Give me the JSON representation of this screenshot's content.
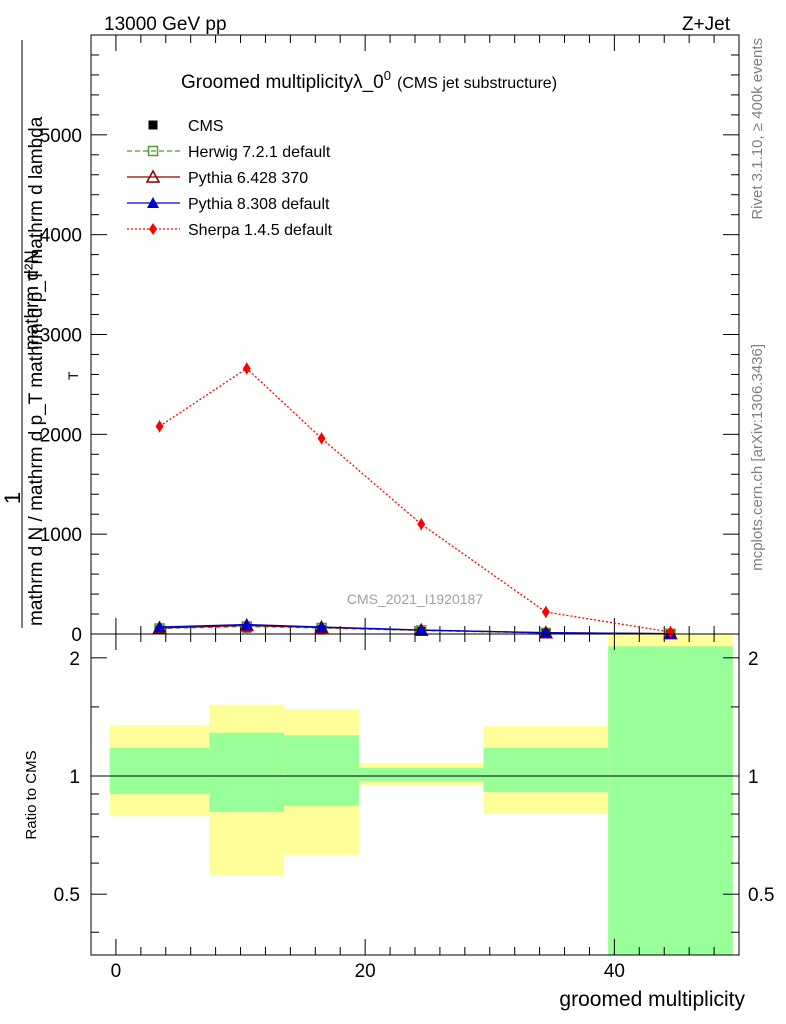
{
  "header": {
    "left": "13000 GeV pp",
    "right": "Z+Jet"
  },
  "side_texts": {
    "rivet": "Rivet 3.1.10, ≥ 400k events",
    "mcplots": "mcplots.cern.ch [arXiv:1306.3436]"
  },
  "chart_data": {
    "type": "line",
    "title": "Groomed multiplicityλ_0",
    "title_sup": "0",
    "title_suffix": "(CMS jet substructure)",
    "analysis_label": "CMS_2021_I1920187",
    "ylabel_top": "1",
    "ylabel_bottom": "mathrm d N / mathrm d p_T mathrm d p_T mathrm d lambda",
    "ylabel_numerator": "mathrm d²N",
    "ylabel_sub": "T",
    "xlabel": "groomed multiplicity",
    "xlim": [
      -2,
      50
    ],
    "ylim": [
      0,
      6000
    ],
    "x_ticks": [
      "0",
      "20",
      "40"
    ],
    "y_ticks": [
      "0",
      "1000",
      "2000",
      "3000",
      "4000",
      "5000"
    ],
    "x": [
      3.5,
      10.5,
      16.5,
      24.5,
      34.5,
      44.5
    ],
    "series": [
      {
        "name": "CMS",
        "values": [
          40,
          60,
          45,
          25,
          8,
          2
        ],
        "color": "#000000",
        "marker": "square-filled",
        "line": "none"
      },
      {
        "name": "Herwig 7.2.1 default",
        "values": [
          55,
          75,
          60,
          35,
          10,
          3
        ],
        "color": "#4c9a2a",
        "marker": "square-open",
        "line": "dashed"
      },
      {
        "name": "Pythia 6.428 370",
        "values": [
          60,
          85,
          65,
          38,
          12,
          4
        ],
        "color": "#8b0000",
        "marker": "triangle-open",
        "line": "solid"
      },
      {
        "name": "Pythia 8.308 default",
        "values": [
          70,
          95,
          70,
          40,
          13,
          4
        ],
        "color": "#0000cc",
        "marker": "triangle-filled",
        "line": "solid"
      },
      {
        "name": "Sherpa 1.4.5 default",
        "values": [
          2080,
          2660,
          1960,
          1100,
          220,
          20
        ],
        "color": "#ff0000",
        "marker": "diamond-filled",
        "line": "dotted"
      }
    ],
    "ratio": {
      "ylabel": "Ratio to CMS",
      "y_ticks": [
        "0.5",
        "1",
        "2"
      ],
      "ylim": [
        0.35,
        2.3
      ],
      "bins": [
        {
          "lo": -0.5,
          "hi": 7.5,
          "yellow": [
            0.79,
            1.35
          ],
          "green": [
            0.9,
            1.18
          ]
        },
        {
          "lo": 7.5,
          "hi": 13.5,
          "yellow": [
            0.56,
            1.52
          ],
          "green": [
            0.81,
            1.29
          ]
        },
        {
          "lo": 13.5,
          "hi": 19.5,
          "yellow": [
            0.63,
            1.48
          ],
          "green": [
            0.84,
            1.27
          ]
        },
        {
          "lo": 19.5,
          "hi": 29.5,
          "yellow": [
            0.95,
            1.08
          ],
          "green": [
            0.97,
            1.05
          ]
        },
        {
          "lo": 29.5,
          "hi": 39.5,
          "yellow": [
            0.8,
            1.34
          ],
          "green": [
            0.91,
            1.18
          ]
        },
        {
          "lo": 39.5,
          "hi": 49.5,
          "yellow": [
            0.35,
            2.3
          ],
          "green": [
            0.35,
            2.14
          ]
        }
      ]
    },
    "colors": {
      "band_yellow": "#ffff99",
      "band_green": "#99ff99"
    }
  }
}
